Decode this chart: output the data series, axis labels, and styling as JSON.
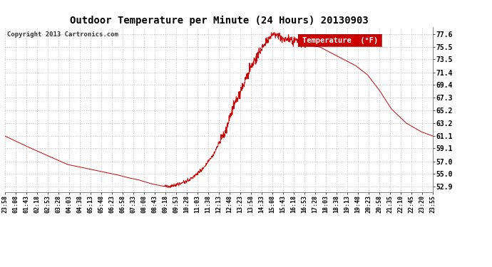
{
  "title": "Outdoor Temperature per Minute (24 Hours) 20130903",
  "copyright": "Copyright 2013 Cartronics.com",
  "legend_label": "Temperature  (°F)",
  "line_color": "#cc0000",
  "background_color": "#ffffff",
  "grid_color": "#c0c0c0",
  "yticks": [
    52.9,
    55.0,
    57.0,
    59.1,
    61.1,
    63.2,
    65.2,
    67.3,
    69.4,
    71.4,
    73.5,
    75.5,
    77.6
  ],
  "ylim": [
    52.0,
    78.8
  ],
  "xtick_labels": [
    "23:58",
    "01:08",
    "01:43",
    "02:18",
    "02:53",
    "03:28",
    "04:03",
    "04:38",
    "05:13",
    "05:48",
    "06:23",
    "06:58",
    "07:33",
    "08:08",
    "08:43",
    "09:18",
    "09:53",
    "10:28",
    "11:03",
    "11:38",
    "12:13",
    "12:48",
    "13:23",
    "13:58",
    "14:33",
    "15:08",
    "15:43",
    "16:18",
    "16:53",
    "17:28",
    "18:03",
    "18:38",
    "19:13",
    "19:48",
    "20:23",
    "20:58",
    "21:35",
    "22:10",
    "22:45",
    "23:20",
    "23:55"
  ],
  "n_points": 1440,
  "key_times": [
    0,
    70,
    150,
    210,
    280,
    340,
    380,
    410,
    430,
    450,
    470,
    490,
    510,
    530,
    550,
    580,
    620,
    660,
    700,
    740,
    770,
    800,
    820,
    840,
    860,
    880,
    900,
    930,
    960,
    990,
    1020,
    1060,
    1100,
    1140,
    1180,
    1220,
    1260,
    1300,
    1350,
    1400,
    1440
  ],
  "key_temps": [
    61.1,
    59.5,
    57.8,
    56.5,
    55.8,
    55.2,
    54.8,
    54.4,
    54.2,
    54.0,
    53.7,
    53.4,
    53.2,
    53.0,
    52.9,
    53.2,
    54.0,
    55.5,
    58.0,
    62.0,
    66.0,
    69.0,
    71.5,
    73.5,
    75.0,
    76.5,
    77.6,
    77.0,
    76.8,
    76.5,
    75.8,
    75.5,
    74.5,
    73.5,
    72.5,
    71.0,
    68.5,
    65.5,
    63.2,
    61.8,
    61.1
  ]
}
